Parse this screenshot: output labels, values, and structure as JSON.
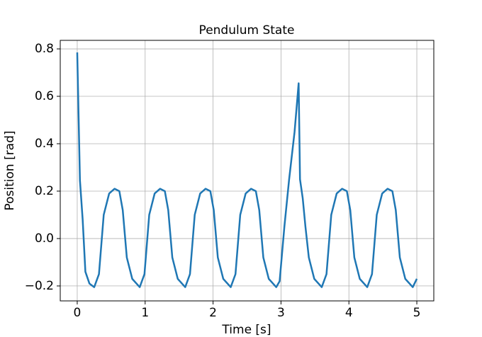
{
  "chart_data": {
    "type": "line",
    "title": "Pendulum State",
    "x_label": "Time [s]",
    "y_label": "Position [rad]",
    "x": [
      0,
      0.04,
      0.08,
      0.12,
      0.18,
      0.25,
      0.32,
      0.39,
      0.47,
      0.55,
      0.62,
      0.67,
      0.73,
      0.81,
      0.92,
      0.99,
      1.06,
      1.14,
      1.22,
      1.29,
      1.34,
      1.4,
      1.48,
      1.59,
      1.66,
      1.73,
      1.81,
      1.89,
      1.96,
      2.01,
      2.07,
      2.15,
      2.26,
      2.33,
      2.4,
      2.48,
      2.56,
      2.63,
      2.68,
      2.74,
      2.82,
      2.93,
      2.98,
      3.05,
      3.12,
      3.2,
      3.26,
      3.28,
      3.32,
      3.36,
      3.41,
      3.49,
      3.6,
      3.67,
      3.74,
      3.82,
      3.9,
      3.97,
      4.02,
      4.08,
      4.16,
      4.27,
      4.34,
      4.41,
      4.49,
      4.57,
      4.64,
      4.69,
      4.75,
      4.83,
      4.94,
      5.0
    ],
    "series": [
      {
        "name": "Position",
        "color": "#1f77b4",
        "values": [
          0.785,
          0.245,
          0.08,
          -0.14,
          -0.19,
          -0.205,
          -0.15,
          0.1,
          0.19,
          0.21,
          0.2,
          0.12,
          -0.08,
          -0.17,
          -0.205,
          -0.15,
          0.1,
          0.19,
          0.21,
          0.2,
          0.12,
          -0.08,
          -0.17,
          -0.205,
          -0.15,
          0.1,
          0.19,
          0.21,
          0.2,
          0.12,
          -0.08,
          -0.17,
          -0.205,
          -0.15,
          0.1,
          0.19,
          0.21,
          0.2,
          0.12,
          -0.08,
          -0.17,
          -0.205,
          -0.18,
          0.05,
          0.25,
          0.45,
          0.655,
          0.25,
          0.17,
          0.05,
          -0.08,
          -0.17,
          -0.205,
          -0.15,
          0.1,
          0.19,
          0.21,
          0.2,
          0.12,
          -0.08,
          -0.17,
          -0.205,
          -0.15,
          0.1,
          0.19,
          0.21,
          0.2,
          0.12,
          -0.08,
          -0.17,
          -0.205,
          -0.17
        ]
      }
    ],
    "xlim": [
      -0.25,
      5.25
    ],
    "xticks": [
      0,
      1,
      2,
      3,
      4,
      5
    ],
    "ylim": [
      -0.263,
      0.836
    ],
    "yticks": [
      {
        "value": -0.2,
        "label": "−0.2"
      },
      {
        "value": 0,
        "label": "0.0"
      },
      0.2,
      0.4,
      0.6,
      0.8
    ],
    "grid": true
  }
}
